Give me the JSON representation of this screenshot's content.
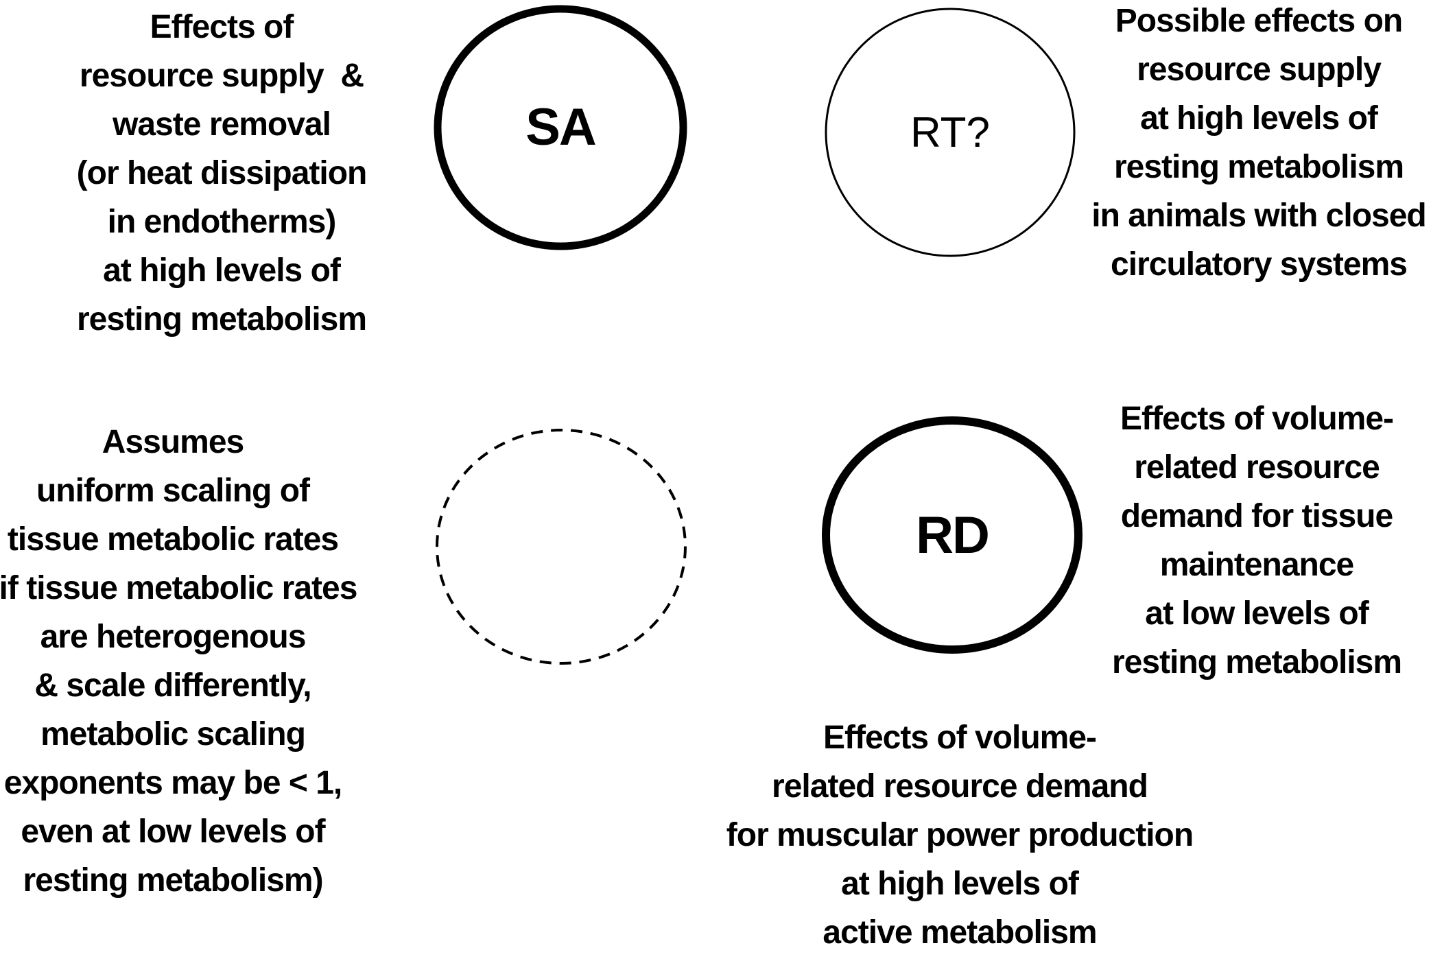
{
  "figure": {
    "background_color": "#ffffff",
    "text_color": "#000000",
    "description": "Venn-style concept diagram of metabolic scaling hypotheses"
  },
  "blocks": {
    "top_left": {
      "lines": [
        "Effects of",
        "resource supply  &",
        "waste removal",
        "(or heat dissipation",
        "in endotherms)",
        "at high levels of",
        "resting metabolism"
      ]
    },
    "top_right": {
      "lines": [
        "Possible effects on",
        "resource supply",
        "at high levels of",
        "resting metabolism",
        "in animals with closed",
        "circulatory systems"
      ]
    },
    "left_middle": {
      "lines": [
        "Assumes",
        "uniform scaling of",
        "tissue metabolic rates",
        "(if tissue metabolic rates",
        "are heterogenous",
        "& scale differently,",
        "metabolic scaling",
        "exponents may be < 1,",
        "even at low levels of",
        "resting metabolism)"
      ]
    },
    "right_middle": {
      "lines": [
        "Effects of volume-",
        "related resource",
        "demand for tissue",
        "maintenance",
        "at low levels of",
        "resting metabolism"
      ]
    },
    "bottom_center": {
      "lines": [
        "Effects of volume-",
        "related resource demand",
        "for muscular power production",
        "at high levels of",
        "active metabolism"
      ]
    }
  },
  "circles": {
    "sa": {
      "label": "SA",
      "border_style": "solid-thick"
    },
    "rt": {
      "label": "RT?",
      "border_style": "solid-thin"
    },
    "dashed": {
      "label": "",
      "border_style": "dashed"
    },
    "rd": {
      "label": "RD",
      "border_style": "solid-thick"
    }
  }
}
